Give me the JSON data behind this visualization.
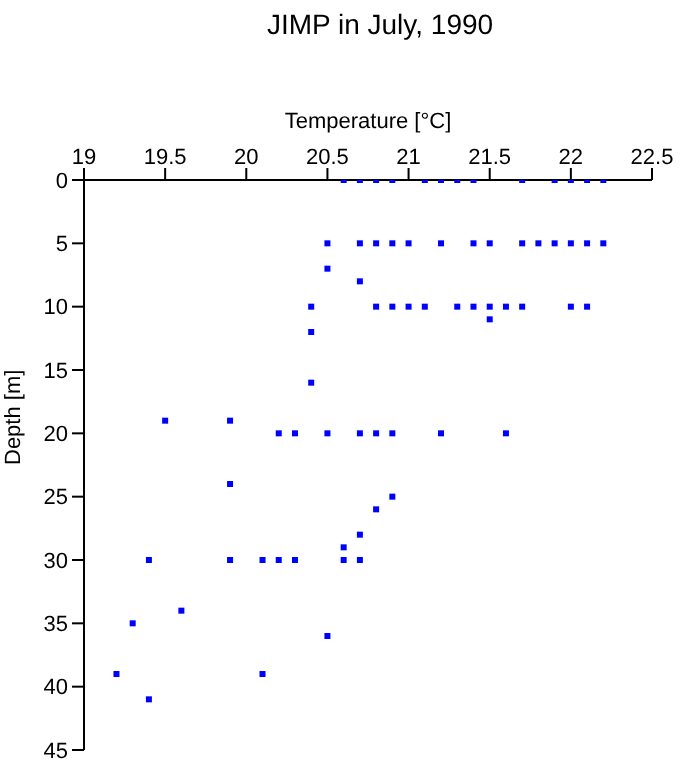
{
  "chart_data": {
    "type": "scatter",
    "title": "JIMP in July, 1990",
    "xlabel": "Temperature [°C]",
    "ylabel": "Depth [m]",
    "xlim": [
      19,
      22.5
    ],
    "xticks": [
      19,
      19.5,
      20,
      20.5,
      21,
      21.5,
      22,
      22.5
    ],
    "ylim": [
      45,
      0
    ],
    "yticks": [
      0,
      5,
      10,
      15,
      20,
      25,
      30,
      35,
      40,
      45
    ],
    "grid": false,
    "legend": false,
    "marker": "square",
    "series": [
      {
        "color": "#0000ff",
        "x": [
          20.6,
          20.7,
          20.8,
          20.9,
          21.1,
          21.2,
          21.3,
          21.4,
          21.7,
          21.9,
          22.0,
          22.1,
          22.2,
          20.5,
          20.7,
          20.8,
          20.9,
          21.0,
          21.2,
          21.4,
          21.5,
          21.7,
          21.8,
          21.9,
          22.0,
          22.1,
          22.2,
          20.5,
          20.7,
          20.4,
          20.8,
          20.9,
          21.0,
          21.1,
          21.3,
          21.4,
          21.5,
          21.6,
          21.7,
          22.0,
          22.1,
          21.5,
          20.4,
          20.4,
          19.5,
          19.9,
          20.2,
          20.3,
          20.5,
          20.7,
          20.8,
          20.9,
          21.2,
          21.6,
          19.9,
          20.9,
          20.8,
          20.7,
          20.6,
          19.4,
          19.9,
          20.1,
          20.2,
          20.3,
          20.6,
          20.7,
          19.6,
          19.3,
          20.5,
          19.2,
          20.1,
          19.4
        ],
        "values": [
          0,
          0,
          0,
          0,
          0,
          0,
          0,
          0,
          0,
          0,
          0,
          0,
          0,
          5,
          5,
          5,
          5,
          5,
          5,
          5,
          5,
          5,
          5,
          5,
          5,
          5,
          5,
          7,
          8,
          10,
          10,
          10,
          10,
          10,
          10,
          10,
          10,
          10,
          10,
          10,
          10,
          11,
          12,
          16,
          19,
          19,
          20,
          20,
          20,
          20,
          20,
          20,
          20,
          20,
          24,
          25,
          26,
          28,
          29,
          30,
          30,
          30,
          30,
          30,
          30,
          30,
          34,
          35,
          36,
          39,
          39,
          41
        ]
      }
    ]
  }
}
